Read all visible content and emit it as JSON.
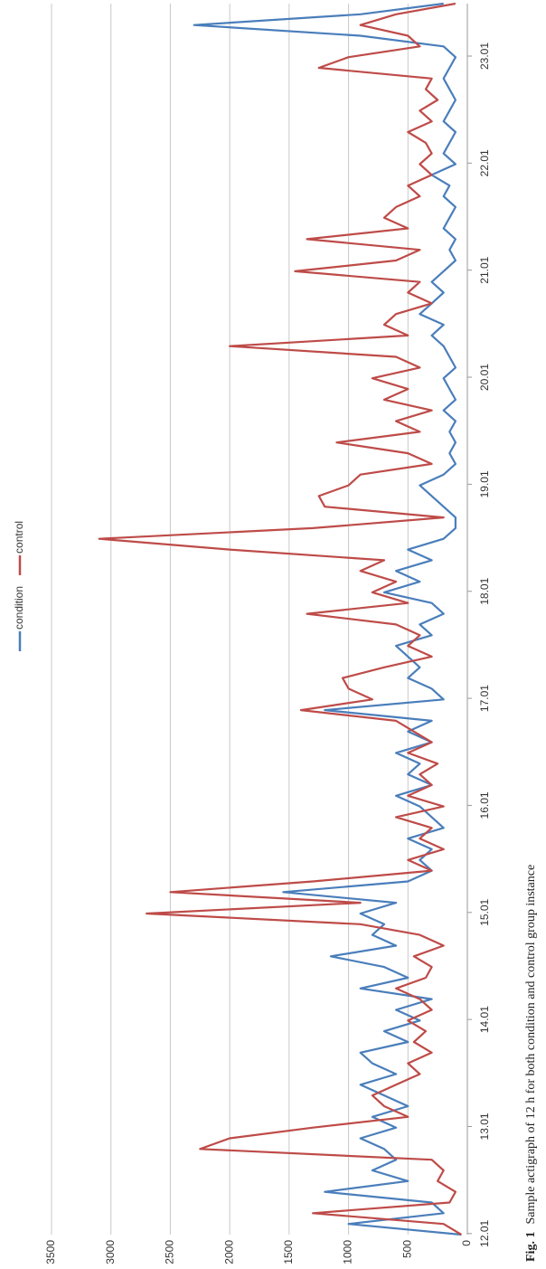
{
  "chart_data": {
    "type": "line",
    "legend": [
      "condition",
      "control"
    ],
    "x": [
      12.0,
      12.1,
      12.2,
      12.3,
      12.4,
      12.5,
      12.6,
      12.7,
      12.8,
      12.9,
      13.0,
      13.1,
      13.2,
      13.3,
      13.4,
      13.5,
      13.6,
      13.7,
      13.8,
      13.9,
      14.0,
      14.1,
      14.2,
      14.3,
      14.4,
      14.5,
      14.6,
      14.7,
      14.8,
      14.9,
      15.0,
      15.1,
      15.2,
      15.3,
      15.4,
      15.5,
      15.6,
      15.7,
      15.8,
      15.9,
      16.0,
      16.1,
      16.2,
      16.3,
      16.4,
      16.5,
      16.6,
      16.7,
      16.8,
      16.9,
      17.0,
      17.1,
      17.2,
      17.3,
      17.4,
      17.5,
      17.6,
      17.7,
      17.8,
      17.9,
      18.0,
      18.1,
      18.2,
      18.3,
      18.4,
      18.5,
      18.6,
      18.7,
      18.8,
      18.9,
      19.0,
      19.1,
      19.2,
      19.3,
      19.4,
      19.5,
      19.6,
      19.7,
      19.8,
      19.9,
      20.0,
      20.1,
      20.2,
      20.3,
      20.4,
      20.5,
      20.6,
      20.7,
      20.8,
      20.9,
      21.0,
      21.1,
      21.2,
      21.3,
      21.4,
      21.5,
      21.6,
      21.7,
      21.8,
      21.9,
      22.0,
      22.1,
      22.2,
      22.3,
      22.4,
      22.5,
      22.6,
      22.7,
      22.8,
      22.9,
      23.0,
      23.1,
      23.2,
      23.3,
      23.4,
      23.5
    ],
    "series": [
      {
        "name": "condition",
        "color": "#4a7ebb",
        "values": [
          50,
          1000,
          200,
          300,
          1200,
          500,
          800,
          600,
          700,
          900,
          600,
          800,
          500,
          700,
          900,
          600,
          800,
          900,
          500,
          700,
          400,
          600,
          300,
          900,
          500,
          700,
          1150,
          600,
          800,
          700,
          900,
          600,
          1550,
          500,
          300,
          400,
          300,
          500,
          200,
          300,
          400,
          600,
          300,
          500,
          400,
          600,
          300,
          500,
          300,
          1200,
          200,
          300,
          500,
          400,
          500,
          600,
          300,
          400,
          200,
          300,
          700,
          400,
          600,
          300,
          500,
          200,
          100,
          100,
          200,
          300,
          400,
          200,
          100,
          150,
          100,
          150,
          100,
          200,
          100,
          150,
          200,
          100,
          150,
          200,
          300,
          200,
          400,
          300,
          200,
          300,
          200,
          100,
          150,
          100,
          200,
          150,
          100,
          200,
          150,
          300,
          100,
          200,
          150,
          100,
          200,
          150,
          100,
          150,
          200,
          150,
          100,
          200,
          900,
          2300,
          900,
          200
        ]
      },
      {
        "name": "control",
        "color": "#be4b48",
        "values": [
          50,
          200,
          1300,
          150,
          100,
          250,
          200,
          300,
          2250,
          2000,
          1300,
          500,
          700,
          800,
          600,
          400,
          500,
          300,
          450,
          350,
          500,
          300,
          400,
          600,
          350,
          300,
          450,
          200,
          400,
          900,
          2700,
          900,
          2500,
          1300,
          300,
          500,
          200,
          400,
          300,
          600,
          200,
          500,
          300,
          400,
          250,
          500,
          300,
          450,
          600,
          1400,
          800,
          1000,
          1050,
          700,
          300,
          500,
          400,
          600,
          1350,
          500,
          800,
          600,
          900,
          700,
          2000,
          3100,
          1300,
          200,
          1200,
          1250,
          1000,
          900,
          300,
          500,
          1100,
          400,
          600,
          300,
          700,
          500,
          800,
          400,
          600,
          2000,
          500,
          700,
          600,
          300,
          500,
          400,
          1450,
          600,
          400,
          1350,
          500,
          700,
          600,
          400,
          500,
          300,
          400,
          300,
          350,
          500,
          300,
          400,
          250,
          350,
          300,
          1250,
          1000,
          400,
          500,
          900,
          600,
          100
        ]
      }
    ],
    "xlim": [
      12.0,
      23.5
    ],
    "xticks": [
      12.01,
      13.01,
      14.01,
      15.01,
      16.01,
      17.01,
      18.01,
      19.01,
      20.01,
      21.01,
      22.01,
      23.01
    ],
    "ylim": [
      0,
      3500
    ],
    "yticks": [
      0,
      500,
      1000,
      1500,
      2000,
      2500,
      3000,
      3500
    ],
    "grid": true,
    "caption": {
      "label": "Fig. 1",
      "text": "Sample actigraph of 12 h for both condition and control group instance"
    }
  }
}
